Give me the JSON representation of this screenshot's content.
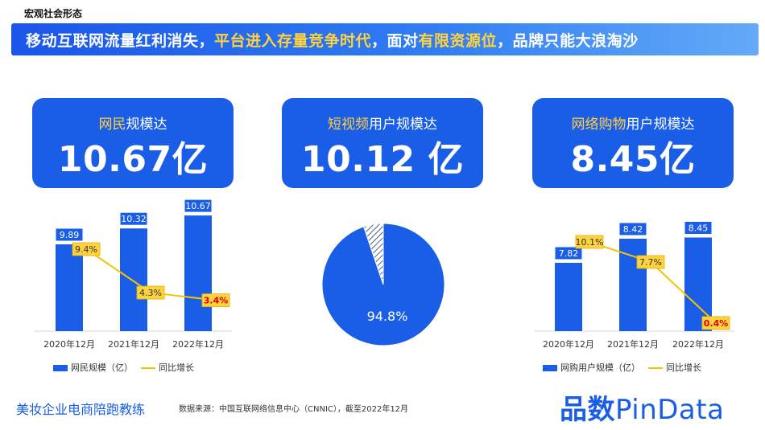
{
  "section_tag": "宏观社会形态",
  "banner": {
    "part1": "移动互联网流量红利消失，",
    "part2": "平台进入存量竞争时代",
    "part3": "，面对",
    "part4": "有限资源位",
    "part5": "，品牌只能大浪淘沙"
  },
  "kpis": [
    {
      "label_hl": "网民",
      "label_rest": "规模达",
      "value": "10.67亿"
    },
    {
      "label_hl": "短视频",
      "label_rest": "用户规模达",
      "value": "10.12 亿"
    },
    {
      "label_hl": "网络购物",
      "label_rest": "用户规模达",
      "value": "8.45亿"
    }
  ],
  "legend_left": {
    "bar": "网民规模（亿）",
    "line": "同比增长"
  },
  "legend_right": {
    "bar": "网购用户规模（亿）",
    "line": "同比增长"
  },
  "footer": {
    "left": "美妆企业电商陪跑教练",
    "source": "数据来源：中国互联网络信息中心（CNNIC），截至2022年12月",
    "logo_cn": "品数",
    "logo_en": "PinData"
  },
  "colors": {
    "bar": "#1a5ee8",
    "line": "#f5c400",
    "label_bg": "#ffd23f",
    "highlight_text": "#e00000"
  },
  "chart_data": [
    {
      "type": "bar",
      "categories": [
        "2020年12月",
        "2021年12月",
        "2022年12月"
      ],
      "series": [
        {
          "name": "网民规模（亿）",
          "type": "bar",
          "values": [
            9.89,
            10.32,
            10.67
          ],
          "labels": [
            "9.89",
            "10.32",
            "10.67"
          ]
        },
        {
          "name": "同比增长",
          "type": "line",
          "values": [
            9.4,
            4.3,
            3.4
          ],
          "labels": [
            "9.4%",
            "4.3%",
            "3.4%"
          ]
        }
      ],
      "legend": "bottom"
    },
    {
      "type": "pie",
      "slices": [
        {
          "label": "94.8%",
          "value": 94.8,
          "color": "#1a5ee8"
        },
        {
          "label": "",
          "value": 5.2,
          "color": "hatched"
        }
      ]
    },
    {
      "type": "bar",
      "categories": [
        "2020年12月",
        "2021年12月",
        "2022年12月"
      ],
      "series": [
        {
          "name": "网购用户规模（亿）",
          "type": "bar",
          "values": [
            7.82,
            8.42,
            8.45
          ],
          "labels": [
            "7.82",
            "8.42",
            "8.45"
          ]
        },
        {
          "name": "同比增长",
          "type": "line",
          "values": [
            10.1,
            7.7,
            0.4
          ],
          "labels": [
            "10.1%",
            "7.7%",
            "0.4%"
          ]
        }
      ],
      "legend": "bottom"
    }
  ]
}
